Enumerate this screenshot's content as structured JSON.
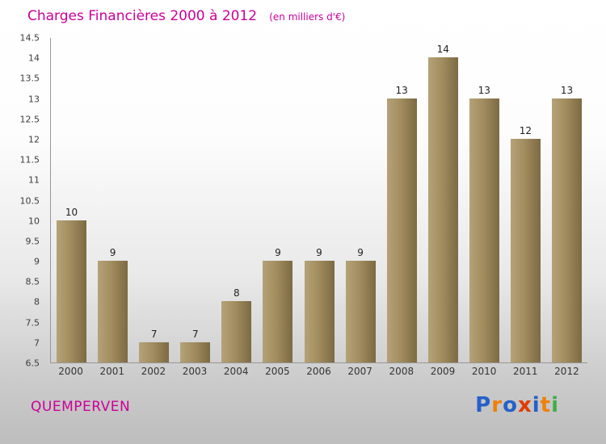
{
  "title": {
    "text": "Charges Financières 2000 à 2012",
    "subtitle": "(en milliers d'€)"
  },
  "footer": {
    "name": "QUEMPERVEN",
    "logo": [
      {
        "ch": "P",
        "color": "#2660c8"
      },
      {
        "ch": "r",
        "color": "#ef8109"
      },
      {
        "ch": "o",
        "color": "#2660c8"
      },
      {
        "ch": "x",
        "color": "#e03c00"
      },
      {
        "ch": "i",
        "color": "#2660c8"
      },
      {
        "ch": "t",
        "color": "#ef8109"
      },
      {
        "ch": "i",
        "color": "#3fae49"
      }
    ]
  },
  "chart_data": {
    "type": "bar",
    "title": "Charges Financières 2000 à 2012",
    "subtitle": "(en milliers d'€)",
    "categories": [
      "2000",
      "2001",
      "2002",
      "2003",
      "2004",
      "2005",
      "2006",
      "2007",
      "2008",
      "2009",
      "2010",
      "2011",
      "2012"
    ],
    "values": [
      10,
      9,
      7,
      7,
      8,
      9,
      9,
      9,
      13,
      14,
      13,
      12,
      13
    ],
    "xlabel": "",
    "ylabel": "",
    "ylim": [
      6.5,
      14.5
    ],
    "ytick_step": 0.5,
    "grid": false,
    "legend": false,
    "bar_color_light": "#b5a278",
    "bar_color_dark": "#7d6a43",
    "accent_color": "#cc0099"
  }
}
